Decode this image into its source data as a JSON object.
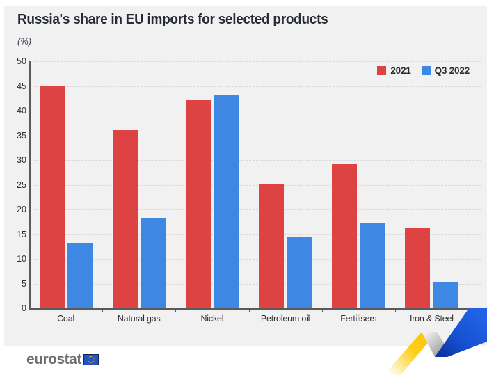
{
  "chart_data": {
    "type": "bar",
    "title": "Russia's share in EU imports for selected products",
    "unit_label": "(%)",
    "xlabel": "",
    "ylabel": "%",
    "categories": [
      "Coal",
      "Natural gas",
      "Nickel",
      "Petroleum oil",
      "Fertilisers",
      "Iron & Steel"
    ],
    "series": [
      {
        "name": "2021",
        "color": "#dd4343",
        "values": [
          45.1,
          36.1,
          42.1,
          25.2,
          29.2,
          16.2
        ]
      },
      {
        "name": "Q3 2022",
        "color": "#3e88e4",
        "values": [
          13.3,
          18.3,
          43.2,
          14.3,
          17.3,
          5.3
        ]
      }
    ],
    "ylim": [
      0,
      50
    ],
    "ytick_step": 5,
    "grid": "dashed-horizontal",
    "legend_position": "top-right"
  },
  "footer": {
    "logo_text": "eurostat"
  },
  "colors": {
    "panel_background": "#f1f1f2",
    "gridline": "#d8d8d8",
    "axis": "#5a5a5a",
    "title_text": "#262b36",
    "eu_flag_blue": "#2553c4",
    "ribbon_yellow": "#fcc400",
    "ribbon_blue": "#1650cf"
  }
}
